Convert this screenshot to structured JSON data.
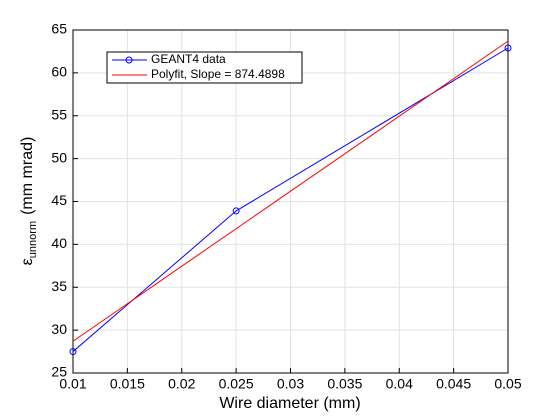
{
  "chart_data": {
    "type": "line",
    "xlabel": "Wire diameter (mm)",
    "ylabel_parts": [
      "ε",
      "unnorm",
      "(mm mrad)"
    ],
    "series": [
      {
        "name": "GEANT4 data",
        "color": "#0000ff",
        "marker": "circle",
        "x": [
          0.01,
          0.025,
          0.05
        ],
        "values": [
          27.5,
          43.9,
          62.9
        ]
      },
      {
        "name": "Polyfit, Slope = 874.4898",
        "color": "#ff0000",
        "marker": "none",
        "x": [
          0.01,
          0.05
        ],
        "values": [
          28.7,
          63.7
        ]
      }
    ],
    "xlim": [
      0.01,
      0.05
    ],
    "xticks": [
      0.01,
      0.015,
      0.02,
      0.025,
      0.03,
      0.035,
      0.04,
      0.045,
      0.05
    ],
    "ylim": [
      25,
      65
    ],
    "yticks": [
      25,
      30,
      35,
      40,
      45,
      50,
      55,
      60,
      65
    ],
    "grid": true,
    "legend": "upper left"
  }
}
